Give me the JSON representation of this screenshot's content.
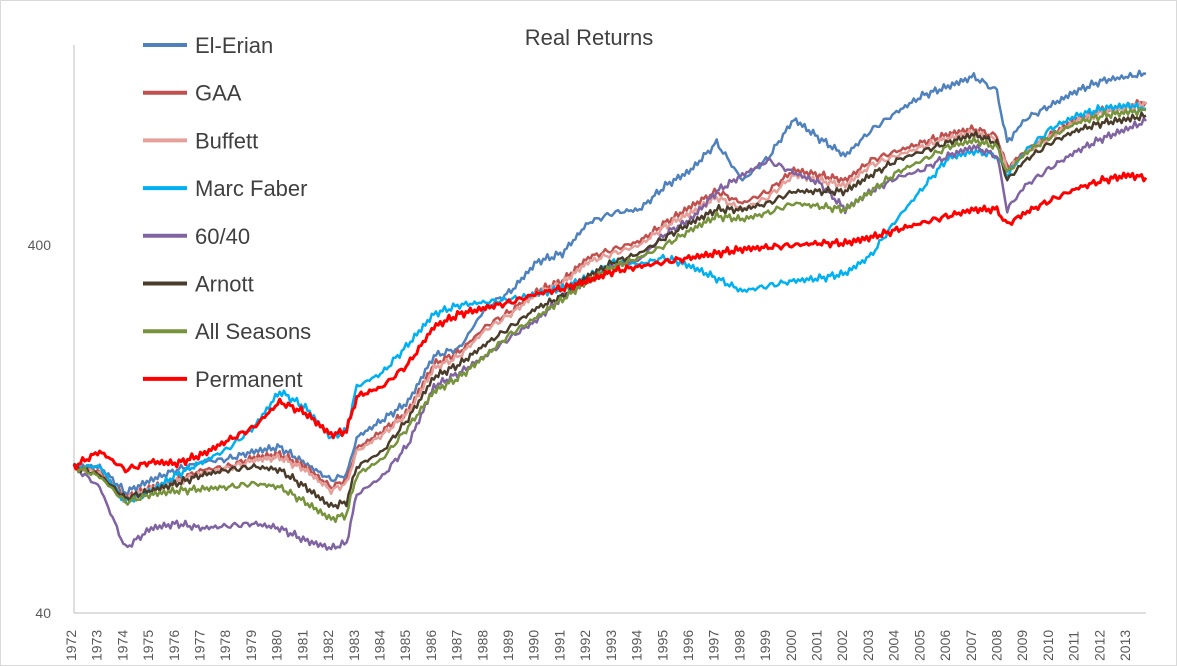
{
  "chart_data": {
    "type": "line",
    "title": "Real Returns",
    "xlabel": "",
    "ylabel": "",
    "y_scale": "log",
    "ylim": [
      40,
      1400
    ],
    "y_ticks": [
      40,
      400
    ],
    "xlim": [
      1972,
      2013.7
    ],
    "x_ticks": [
      "1972",
      "1973",
      "1974",
      "1975",
      "1976",
      "1977",
      "1978",
      "1979",
      "1980",
      "1981",
      "1982",
      "1983",
      "1984",
      "1985",
      "1986",
      "1987",
      "1988",
      "1989",
      "1990",
      "1991",
      "1992",
      "1993",
      "1994",
      "1995",
      "1996",
      "1997",
      "1998",
      "1999",
      "2000",
      "2001",
      "2002",
      "2003",
      "2004",
      "2005",
      "2006",
      "2007",
      "2008",
      "2009",
      "2010",
      "2011",
      "2012",
      "2013"
    ],
    "legend_position": "top-left",
    "grid": false,
    "series": [
      {
        "name": "El-Erian",
        "color": "#4f81bd",
        "x": [
          1972,
          1973,
          1974,
          1975,
          1976,
          1977,
          1978,
          1979,
          1980,
          1981,
          1982,
          1982.6,
          1983,
          1984,
          1985,
          1986,
          1987,
          1988,
          1989,
          1990,
          1991,
          1992,
          1993,
          1994,
          1995,
          1996,
          1997,
          1998,
          1999,
          2000,
          2001,
          2002,
          2003,
          2004,
          2005,
          2006,
          2007,
          2007.9,
          2008.3,
          2009,
          2010,
          2011,
          2012,
          2013,
          2013.7
        ],
        "y": [
          100,
          100,
          85,
          92,
          98,
          103,
          105,
          110,
          113,
          102,
          92,
          95,
          120,
          134,
          150,
          200,
          210,
          270,
          300,
          360,
          380,
          460,
          490,
          500,
          580,
          640,
          760,
          600,
          690,
          880,
          780,
          700,
          820,
          920,
          1020,
          1080,
          1150,
          1050,
          760,
          880,
          960,
          1050,
          1120,
          1150,
          1170
        ]
      },
      {
        "name": "GAA",
        "color": "#c0504d",
        "x": [
          1972,
          1973,
          1974,
          1975,
          1976,
          1977,
          1978,
          1979,
          1980,
          1981,
          1982,
          1982.6,
          1983,
          1984,
          1985,
          1986,
          1987,
          1988,
          1989,
          1990,
          1991,
          1992,
          1993,
          1994,
          1995,
          1996,
          1997,
          1998,
          1999,
          2000,
          2001,
          2002,
          2003,
          2004,
          2005,
          2006,
          2007,
          2007.9,
          2008.3,
          2009,
          2010,
          2011,
          2012,
          2013,
          2013.7
        ],
        "y": [
          100,
          97,
          82,
          88,
          92,
          98,
          100,
          106,
          108,
          100,
          88,
          92,
          112,
          125,
          142,
          190,
          205,
          240,
          265,
          300,
          320,
          370,
          390,
          410,
          460,
          510,
          560,
          520,
          560,
          640,
          620,
          600,
          680,
          720,
          760,
          800,
          830,
          790,
          650,
          720,
          800,
          880,
          930,
          960,
          980
        ]
      },
      {
        "name": "Buffett",
        "color": "#e6a09a",
        "x": [
          1972,
          1973,
          1974,
          1975,
          1976,
          1977,
          1978,
          1979,
          1980,
          1981,
          1982,
          1982.6,
          1983,
          1984,
          1985,
          1986,
          1987,
          1988,
          1989,
          1990,
          1991,
          1992,
          1993,
          1994,
          1995,
          1996,
          1997,
          1998,
          1999,
          2000,
          2001,
          2002,
          2003,
          2004,
          2005,
          2006,
          2007,
          2007.9,
          2008.3,
          2009,
          2010,
          2011,
          2012,
          2013,
          2013.7
        ],
        "y": [
          100,
          96,
          81,
          87,
          91,
          96,
          99,
          104,
          106,
          98,
          86,
          90,
          110,
          122,
          140,
          185,
          200,
          235,
          260,
          295,
          315,
          360,
          380,
          400,
          450,
          490,
          540,
          500,
          540,
          620,
          600,
          580,
          660,
          700,
          740,
          780,
          810,
          770,
          640,
          710,
          790,
          870,
          920,
          950,
          970
        ]
      },
      {
        "name": "Marc Faber",
        "color": "#00b0f0",
        "x": [
          1972,
          1973,
          1974,
          1975,
          1976,
          1977,
          1978,
          1979,
          1980,
          1981,
          1982,
          1982.6,
          1983,
          1984,
          1985,
          1986,
          1987,
          1988,
          1989,
          1990,
          1991,
          1992,
          1993,
          1994,
          1995,
          1996,
          1997,
          1998,
          1999,
          2000,
          2001,
          2002,
          2003,
          2004,
          2005,
          2006,
          2007,
          2007.9,
          2008.3,
          2009,
          2010,
          2011,
          2012,
          2013,
          2013.7
        ],
        "y": [
          100,
          100,
          80,
          86,
          95,
          103,
          112,
          128,
          160,
          145,
          120,
          125,
          165,
          180,
          215,
          260,
          275,
          280,
          285,
          295,
          305,
          330,
          360,
          355,
          370,
          350,
          325,
          300,
          310,
          320,
          325,
          335,
          375,
          470,
          570,
          690,
          720,
          700,
          620,
          720,
          830,
          900,
          940,
          960,
          940
        ]
      },
      {
        "name": "60/40",
        "color": "#8064a2",
        "x": [
          1972,
          1973,
          1974,
          1975,
          1976,
          1977,
          1978,
          1979,
          1980,
          1981,
          1982,
          1982.6,
          1983,
          1984,
          1985,
          1986,
          1987,
          1988,
          1989,
          1990,
          1991,
          1992,
          1993,
          1994,
          1995,
          1996,
          1997,
          1998,
          1999,
          2000,
          2001,
          2002,
          2003,
          2004,
          2005,
          2006,
          2007,
          2007.9,
          2008.3,
          2009,
          2010,
          2011,
          2012,
          2013,
          2013.7
        ],
        "y": [
          100,
          88,
          60,
          68,
          70,
          68,
          69,
          70,
          68,
          63,
          60,
          62,
          84,
          94,
          115,
          165,
          180,
          200,
          225,
          250,
          290,
          320,
          350,
          365,
          430,
          470,
          560,
          620,
          680,
          630,
          590,
          500,
          560,
          610,
          640,
          700,
          740,
          700,
          500,
          580,
          650,
          720,
          780,
          830,
          870
        ]
      },
      {
        "name": "Arnott",
        "color": "#4a3c2a",
        "x": [
          1972,
          1973,
          1974,
          1975,
          1976,
          1977,
          1978,
          1979,
          1980,
          1981,
          1982,
          1982.6,
          1983,
          1984,
          1985,
          1986,
          1987,
          1988,
          1989,
          1990,
          1991,
          1992,
          1993,
          1994,
          1995,
          1996,
          1997,
          1998,
          1999,
          2000,
          2001,
          2002,
          2003,
          2004,
          2005,
          2006,
          2007,
          2007.9,
          2008.3,
          2009,
          2010,
          2011,
          2012,
          2013,
          2013.7
        ],
        "y": [
          100,
          95,
          82,
          86,
          90,
          95,
          98,
          100,
          98,
          88,
          78,
          80,
          100,
          110,
          135,
          175,
          190,
          215,
          240,
          270,
          290,
          330,
          360,
          380,
          420,
          460,
          500,
          500,
          520,
          560,
          560,
          560,
          620,
          680,
          720,
          760,
          800,
          760,
          600,
          680,
          760,
          820,
          860,
          880,
          900
        ]
      },
      {
        "name": "All Seasons",
        "color": "#77933c",
        "x": [
          1972,
          1973,
          1974,
          1975,
          1976,
          1977,
          1978,
          1979,
          1980,
          1981,
          1982,
          1982.6,
          1983,
          1984,
          1985,
          1986,
          1987,
          1988,
          1989,
          1990,
          1991,
          1992,
          1993,
          1994,
          1995,
          1996,
          1997,
          1998,
          1999,
          2000,
          2001,
          2002,
          2003,
          2004,
          2005,
          2006,
          2007,
          2007.9,
          2008.3,
          2009,
          2010,
          2011,
          2012,
          2013,
          2013.7
        ],
        "y": [
          100,
          94,
          80,
          84,
          86,
          87,
          88,
          90,
          88,
          80,
          72,
          74,
          95,
          105,
          128,
          160,
          175,
          200,
          230,
          255,
          285,
          320,
          350,
          370,
          400,
          440,
          480,
          470,
          490,
          520,
          510,
          500,
          560,
          630,
          680,
          740,
          770,
          740,
          630,
          710,
          790,
          860,
          900,
          920,
          930
        ]
      },
      {
        "name": "Permanent",
        "color": "#ff0000",
        "x": [
          1972,
          1973,
          1974,
          1975,
          1976,
          1977,
          1978,
          1979,
          1980,
          1981,
          1982,
          1982.6,
          1983,
          1984,
          1985,
          1986,
          1987,
          1988,
          1989,
          1990,
          1991,
          1992,
          1993,
          1994,
          1995,
          1996,
          1997,
          1998,
          1999,
          2000,
          2001,
          2002,
          2003,
          2004,
          2005,
          2006,
          2007,
          2007.9,
          2008.3,
          2009,
          2010,
          2011,
          2012,
          2013,
          2013.7
        ],
        "y": [
          100,
          110,
          98,
          103,
          102,
          108,
          118,
          128,
          150,
          140,
          122,
          125,
          155,
          165,
          190,
          240,
          260,
          270,
          280,
          295,
          305,
          320,
          340,
          350,
          360,
          370,
          380,
          390,
          395,
          400,
          405,
          405,
          420,
          440,
          460,
          480,
          500,
          500,
          455,
          490,
          530,
          570,
          600,
          620,
          610
        ]
      }
    ]
  }
}
